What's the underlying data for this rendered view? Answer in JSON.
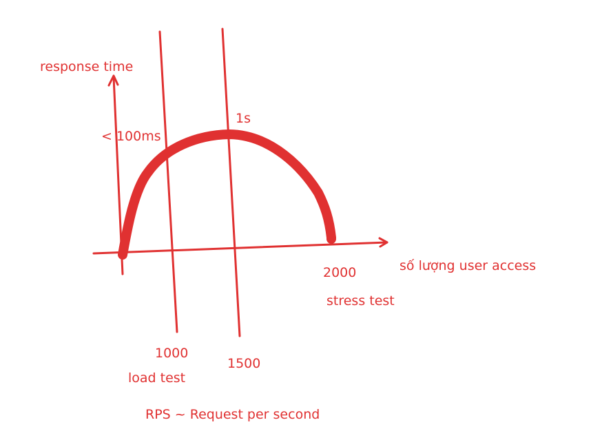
{
  "colors": {
    "ink": "#e03131",
    "background": "#ffffff"
  },
  "labels": {
    "y_axis": "response time",
    "x_axis": "số lượng user access",
    "latency_low": "< 100ms",
    "latency_peak": "1s",
    "rps_1000": "1000",
    "rps_1500": "1500",
    "rps_2000": "2000",
    "load_test": "load test",
    "stress_test": "stress test",
    "rps_note": "RPS ~ Request per second"
  }
}
